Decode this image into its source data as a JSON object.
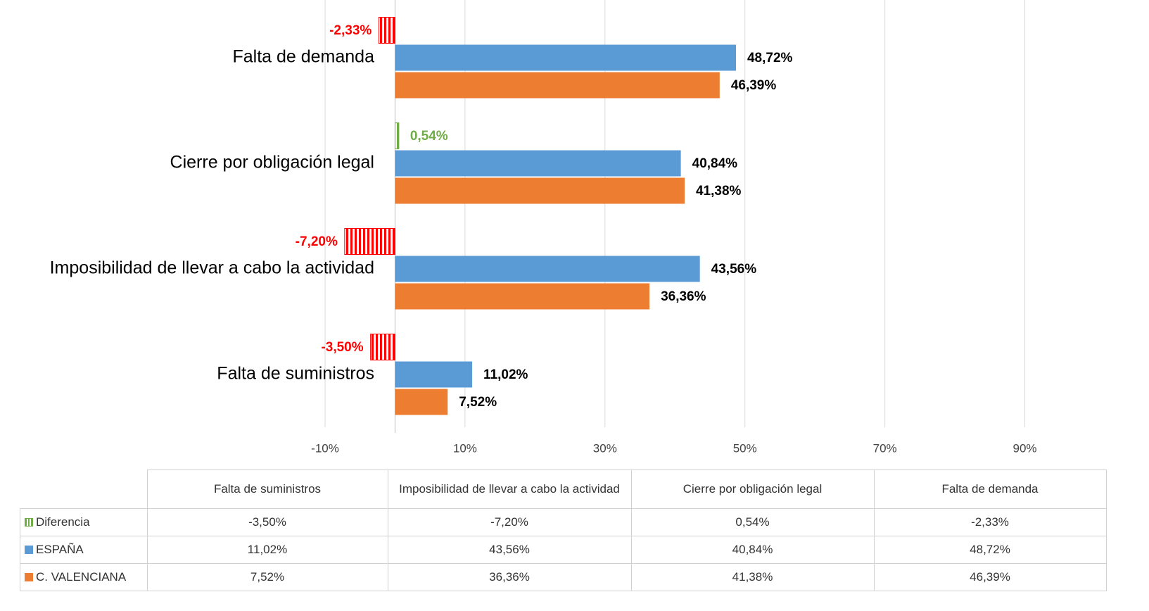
{
  "chart_data": {
    "type": "bar",
    "orientation": "horizontal",
    "categories": [
      "Falta de suministros",
      "Imposibilidad de llevar a cabo la actividad",
      "Cierre por obligación legal",
      "Falta de demanda"
    ],
    "series": [
      {
        "name": "Diferencia",
        "color": "#70ad47",
        "negative_color": "#ff0000",
        "pattern": "vertical-stripes",
        "values": [
          -3.5,
          -7.2,
          0.54,
          -2.33
        ],
        "value_labels": [
          "-3,50%",
          "-7,20%",
          "0,54%",
          "-2,33%"
        ]
      },
      {
        "name": "ESPAÑA",
        "color": "#5b9bd5",
        "values": [
          11.02,
          43.56,
          40.84,
          48.72
        ],
        "value_labels": [
          "11,02%",
          "43,56%",
          "40,84%",
          "48,72%"
        ]
      },
      {
        "name": "C. VALENCIANA",
        "color": "#ed7d31",
        "values": [
          7.52,
          36.36,
          41.38,
          46.39
        ],
        "value_labels": [
          "7,52%",
          "36,36%",
          "41,38%",
          "46,39%"
        ]
      }
    ],
    "xlim": [
      -10,
      100
    ],
    "xticks": [
      {
        "value": -10,
        "label": "-10%"
      },
      {
        "value": 10,
        "label": "10%"
      },
      {
        "value": 30,
        "label": "30%"
      },
      {
        "value": 50,
        "label": "50%"
      },
      {
        "value": 70,
        "label": "70%"
      },
      {
        "value": 90,
        "label": "90%"
      }
    ],
    "grid": true,
    "data_table": true
  }
}
